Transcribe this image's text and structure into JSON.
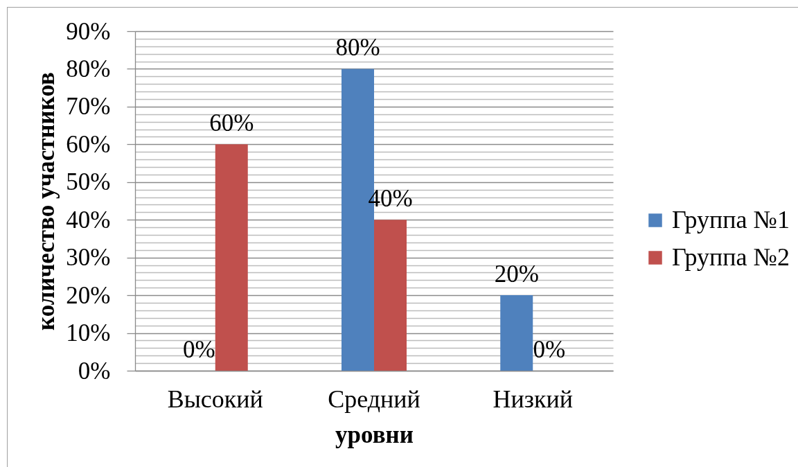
{
  "chart_data": {
    "type": "bar",
    "xlabel": "уровни",
    "ylabel": "количество участников",
    "categories": [
      "Высокий",
      "Средний",
      "Низкий"
    ],
    "series": [
      {
        "name": "Группа №1",
        "color": "#4f81bd",
        "values": [
          0,
          80,
          20
        ],
        "value_labels": [
          "0%",
          "80%",
          "20%"
        ]
      },
      {
        "name": "Группа №2",
        "color": "#c0504d",
        "values": [
          60,
          40,
          0
        ],
        "value_labels": [
          "60%",
          "40%",
          "0%"
        ]
      }
    ],
    "ylim": [
      0,
      90
    ],
    "yticks": [
      {
        "value": 0,
        "label": "0%"
      },
      {
        "value": 2,
        "label": null
      },
      {
        "value": 4,
        "label": null
      },
      {
        "value": 6,
        "label": null
      },
      {
        "value": 8,
        "label": null
      },
      {
        "value": 10,
        "label": "10%"
      },
      {
        "value": 12,
        "label": null
      },
      {
        "value": 14,
        "label": null
      },
      {
        "value": 16,
        "label": null
      },
      {
        "value": 18,
        "label": null
      },
      {
        "value": 20,
        "label": "20%"
      },
      {
        "value": 22,
        "label": null
      },
      {
        "value": 24,
        "label": null
      },
      {
        "value": 26,
        "label": null
      },
      {
        "value": 28,
        "label": null
      },
      {
        "value": 30,
        "label": "30%"
      },
      {
        "value": 32,
        "label": null
      },
      {
        "value": 34,
        "label": null
      },
      {
        "value": 36,
        "label": null
      },
      {
        "value": 38,
        "label": null
      },
      {
        "value": 40,
        "label": "40%"
      },
      {
        "value": 42,
        "label": null
      },
      {
        "value": 44,
        "label": null
      },
      {
        "value": 46,
        "label": null
      },
      {
        "value": 48,
        "label": null
      },
      {
        "value": 50,
        "label": "50%"
      },
      {
        "value": 52,
        "label": null
      },
      {
        "value": 54,
        "label": null
      },
      {
        "value": 56,
        "label": null
      },
      {
        "value": 58,
        "label": null
      },
      {
        "value": 60,
        "label": "60%"
      },
      {
        "value": 62,
        "label": null
      },
      {
        "value": 64,
        "label": null
      },
      {
        "value": 66,
        "label": null
      },
      {
        "value": 68,
        "label": null
      },
      {
        "value": 70,
        "label": "70%"
      },
      {
        "value": 72,
        "label": null
      },
      {
        "value": 74,
        "label": null
      },
      {
        "value": 76,
        "label": null
      },
      {
        "value": 78,
        "label": null
      },
      {
        "value": 80,
        "label": "80%"
      },
      {
        "value": 82,
        "label": null
      },
      {
        "value": 84,
        "label": null
      },
      {
        "value": 86,
        "label": null
      },
      {
        "value": 88,
        "label": null
      },
      {
        "value": 90,
        "label": "90%"
      }
    ],
    "grid": true,
    "legend": "right"
  }
}
